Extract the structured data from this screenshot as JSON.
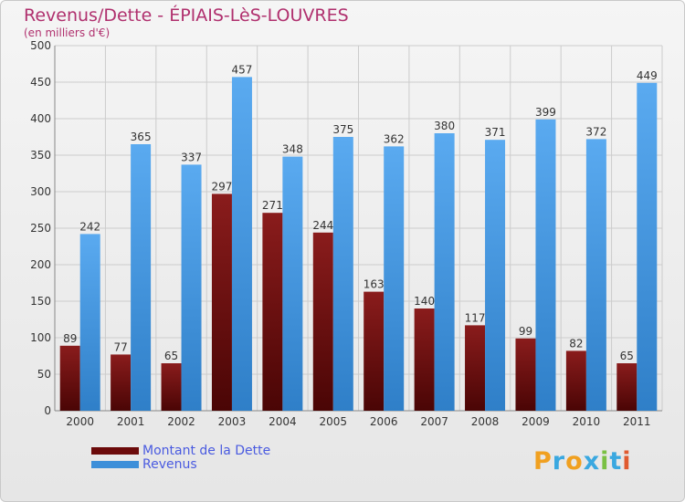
{
  "title": "Revenus/Dette - ÉPIAIS-LèS-LOUVRES",
  "subtitle": "(en milliers d'€)",
  "colors": {
    "debt": "#6b0a0a",
    "debt_light": "#8a1c1c",
    "revenue": "#3d8fd9",
    "revenue_light": "#5aaaf0",
    "grid": "#cccccc",
    "axis_text": "#333333",
    "title": "#b0306e",
    "legend_text": "#4a5be0"
  },
  "legend": {
    "debt_label": "Montant de la Dette",
    "revenue_label": "Revenus"
  },
  "logo": {
    "letters": [
      "P",
      "r",
      "o",
      "x",
      "i",
      "t",
      "i"
    ],
    "colors": [
      "#f0a020",
      "#3aa8e0",
      "#f0a020",
      "#3aa8e0",
      "#7ac043",
      "#3aa8e0",
      "#e05a30"
    ],
    "text": "Proxiti"
  },
  "chart_data": {
    "type": "bar",
    "categories": [
      "2000",
      "2001",
      "2002",
      "2003",
      "2004",
      "2005",
      "2006",
      "2007",
      "2008",
      "2009",
      "2010",
      "2011"
    ],
    "series": [
      {
        "name": "Montant de la Dette",
        "values": [
          89,
          77,
          65,
          297,
          271,
          244,
          163,
          140,
          117,
          99,
          82,
          65
        ]
      },
      {
        "name": "Revenus",
        "values": [
          242,
          365,
          337,
          457,
          348,
          375,
          362,
          380,
          371,
          399,
          372,
          449
        ]
      }
    ],
    "ylim": [
      0,
      500
    ],
    "yticks": [
      0,
      50,
      100,
      150,
      200,
      250,
      300,
      350,
      400,
      450,
      500
    ],
    "grid": true,
    "legend_position": "bottom-left"
  }
}
